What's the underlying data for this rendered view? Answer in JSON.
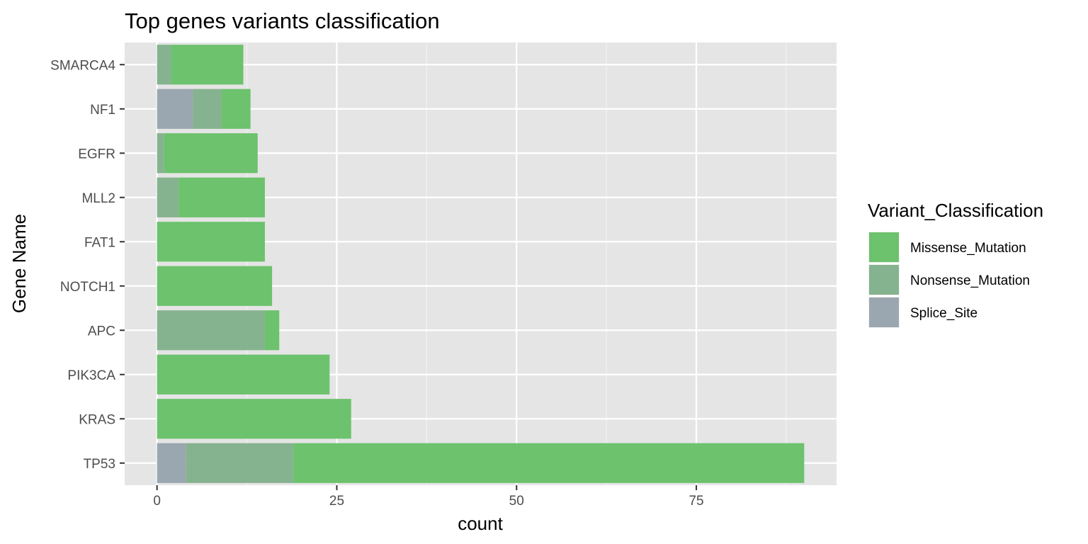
{
  "chart_data": {
    "type": "bar",
    "orientation": "horizontal",
    "stacked": true,
    "title": "Top genes variants classification",
    "xlabel": "count",
    "ylabel": "Gene Name",
    "xlim": [
      -4.5,
      94.5
    ],
    "xticks": [
      0,
      25,
      50,
      75
    ],
    "grid": true,
    "legend": {
      "title": "Variant_Classification",
      "position": "right",
      "entries": [
        "Missense_Mutation",
        "Nonsense_Mutation",
        "Splice_Site"
      ]
    },
    "categories": [
      "SMARCA4",
      "NF1",
      "EGFR",
      "MLL2",
      "FAT1",
      "NOTCH1",
      "APC",
      "PIK3CA",
      "KRAS",
      "TP53"
    ],
    "series": [
      {
        "name": "Splice_Site",
        "color": "#9ba7b0",
        "values": [
          0,
          5,
          0,
          0,
          0,
          0,
          0,
          0,
          0,
          4
        ]
      },
      {
        "name": "Nonsense_Mutation",
        "color": "#86b38f",
        "values": [
          2,
          4,
          1,
          3,
          0,
          0,
          15,
          0,
          0,
          15
        ]
      },
      {
        "name": "Missense_Mutation",
        "color": "#6dc26d",
        "values": [
          10,
          4,
          13,
          12,
          15,
          16,
          2,
          24,
          27,
          71
        ]
      }
    ]
  }
}
